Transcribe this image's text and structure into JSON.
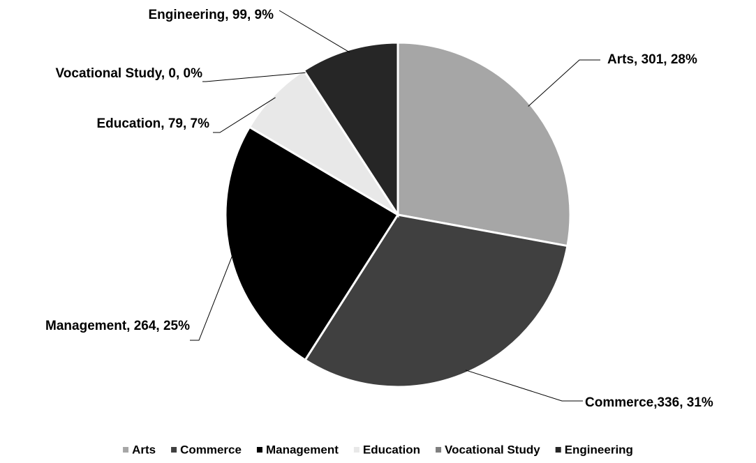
{
  "chart_data": {
    "type": "pie",
    "categories": [
      "Arts",
      "Commerce",
      "Management",
      "Education",
      "Vocational Study",
      "Engineering"
    ],
    "values": [
      301,
      336,
      264,
      79,
      0,
      99
    ],
    "value_labels": [
      "Arts, 301, 28%",
      "Commerce,336, 31%",
      "Management, 264, 25%",
      "Education, 79, 7%",
      "Vocational Study, 0, 0%",
      "Engineering, 99, 9%"
    ],
    "colors": [
      "#a6a6a6",
      "#404040",
      "#000000",
      "#e8e8e8",
      "#7f7f7f",
      "#262626"
    ],
    "legend": "bottom"
  }
}
